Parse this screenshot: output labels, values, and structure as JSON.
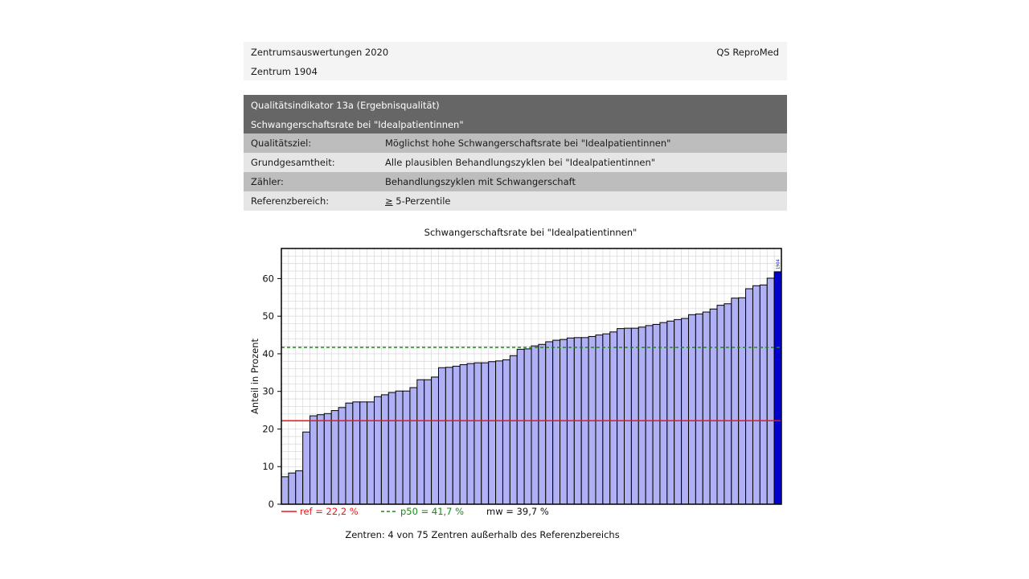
{
  "header": {
    "title": "Zentrumsauswertungen 2020",
    "brand": "QS ReproMed",
    "center": "Zentrum 1904"
  },
  "indicator": {
    "title": "Qualitätsindikator 13a (Ergebnisqualität)",
    "subtitle": "Schwangerschaftsrate bei \"Idealpatientinnen\"",
    "rows": [
      {
        "key": "Qualitätsziel:",
        "value": "Möglichst hohe Schwangerschaftsrate bei \"Idealpatientinnen\""
      },
      {
        "key": "Grundgesamtheit:",
        "value": "Alle plausiblen Behandlungszyklen bei \"Idealpatientinnen\""
      },
      {
        "key": "Zähler:",
        "value": "Behandlungszyklen mit Schwangerschaft"
      },
      {
        "key": "Referenzbereich:",
        "value_symbol": "≥",
        "value": " 5-Perzentile"
      }
    ]
  },
  "chart_data": {
    "type": "bar",
    "title": "Schwangerschaftsrate bei \"Idealpatientinnen\"",
    "ylabel": "Anteil in Prozent",
    "ylim": [
      0,
      68
    ],
    "yticks": [
      0,
      10,
      20,
      30,
      40,
      50,
      60
    ],
    "highlight_index": 69,
    "highlight_label": "1904",
    "values": [
      7.3,
      8.3,
      8.9,
      19.2,
      23.5,
      23.8,
      24.1,
      24.9,
      25.7,
      26.9,
      27.2,
      27.2,
      27.2,
      28.6,
      29.1,
      29.7,
      30.1,
      30.1,
      31.0,
      33.1,
      33.1,
      33.8,
      36.3,
      36.4,
      36.7,
      37.1,
      37.4,
      37.6,
      37.6,
      37.9,
      38.1,
      38.4,
      39.5,
      41.2,
      41.3,
      42.1,
      42.5,
      43.2,
      43.6,
      43.8,
      44.2,
      44.3,
      44.3,
      44.6,
      45.0,
      45.3,
      45.8,
      46.7,
      46.8,
      46.8,
      47.1,
      47.5,
      47.8,
      48.3,
      48.7,
      49.1,
      49.4,
      50.4,
      50.6,
      51.1,
      51.9,
      52.9,
      53.3,
      54.8,
      54.9,
      57.3,
      58.1,
      58.3,
      60.1,
      61.8
    ],
    "lines": [
      {
        "name": "ref",
        "value": 22.2,
        "label": "ref = 22,2 %",
        "style": "solid",
        "color": "#e41a1c"
      },
      {
        "name": "p50",
        "value": 41.7,
        "label": "p50 = 41,7 %",
        "style": "dashed",
        "color": "#1a8a1a"
      }
    ],
    "mw_label": "mw = 39,7 %",
    "bar_color": "#b0b0f4",
    "highlight_color": "#0000cc",
    "footer": "Zentren:  4 von 75 Zentren außerhalb des Referenzbereichs"
  }
}
